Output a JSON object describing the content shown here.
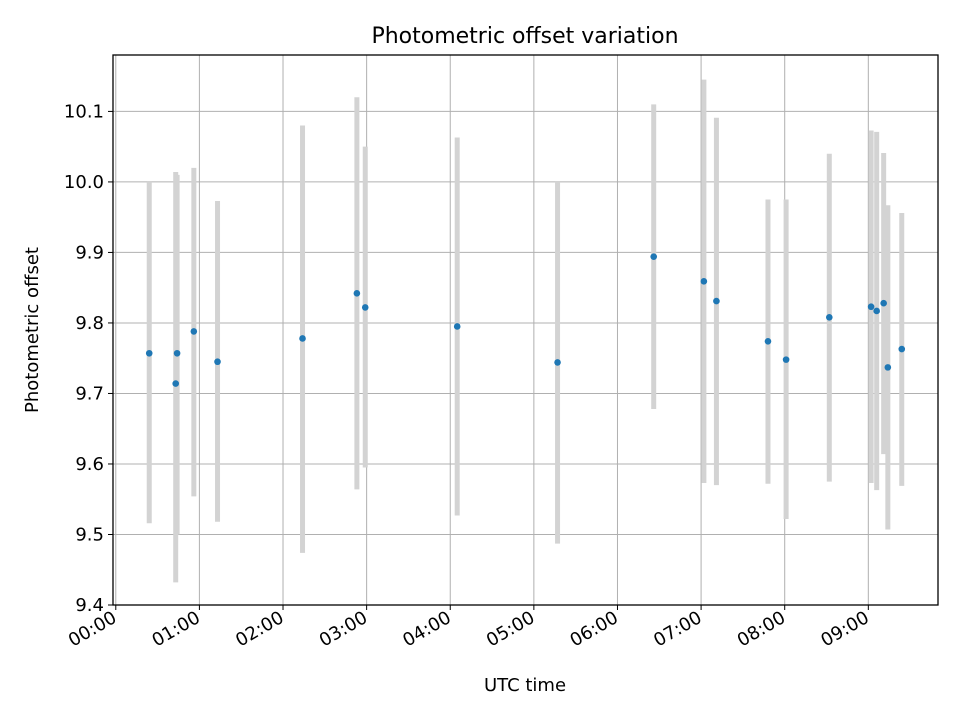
{
  "chart_data": {
    "type": "scatter",
    "title": "Photometric offset variation",
    "xlabel": "UTC time",
    "ylabel": "Photometric offset",
    "x_tick_labels": [
      "00:00",
      "01:00",
      "02:00",
      "03:00",
      "04:00",
      "05:00",
      "06:00",
      "07:00",
      "08:00",
      "09:00"
    ],
    "y_tick_labels": [
      "9.4",
      "9.5",
      "9.6",
      "9.7",
      "9.8",
      "9.9",
      "10.0",
      "10.1"
    ],
    "x_ticks_hours": [
      0,
      1,
      2,
      3,
      4,
      5,
      6,
      7,
      8,
      9
    ],
    "y_ticks": [
      9.4,
      9.5,
      9.6,
      9.7,
      9.8,
      9.9,
      10.0,
      10.1
    ],
    "xlim": [
      "23:58",
      "09:50"
    ],
    "ylim": [
      9.4,
      10.18
    ],
    "grid": true,
    "point_color": "#1f77b4",
    "errorbar_color": "#d3d3d3",
    "points": [
      {
        "x": "00:24",
        "y": 9.757,
        "low": 9.516,
        "high": 10.0
      },
      {
        "x": "00:43",
        "y": 9.714,
        "low": 9.432,
        "high": 10.014
      },
      {
        "x": "00:44",
        "y": 9.757,
        "low": 9.5,
        "high": 10.01
      },
      {
        "x": "00:56",
        "y": 9.788,
        "low": 9.554,
        "high": 10.02
      },
      {
        "x": "01:13",
        "y": 9.745,
        "low": 9.518,
        "high": 9.973
      },
      {
        "x": "02:14",
        "y": 9.778,
        "low": 9.474,
        "high": 10.08
      },
      {
        "x": "02:53",
        "y": 9.842,
        "low": 9.564,
        "high": 10.12
      },
      {
        "x": "02:59",
        "y": 9.822,
        "low": 9.595,
        "high": 10.05
      },
      {
        "x": "04:05",
        "y": 9.795,
        "low": 9.527,
        "high": 10.063
      },
      {
        "x": "05:17",
        "y": 9.744,
        "low": 9.487,
        "high": 10.0
      },
      {
        "x": "06:26",
        "y": 9.894,
        "low": 9.678,
        "high": 10.11
      },
      {
        "x": "07:02",
        "y": 9.859,
        "low": 9.573,
        "high": 10.145
      },
      {
        "x": "07:11",
        "y": 9.831,
        "low": 9.57,
        "high": 10.091
      },
      {
        "x": "07:48",
        "y": 9.774,
        "low": 9.572,
        "high": 9.975
      },
      {
        "x": "08:01",
        "y": 9.748,
        "low": 9.522,
        "high": 9.975
      },
      {
        "x": "08:32",
        "y": 9.808,
        "low": 9.575,
        "high": 10.04
      },
      {
        "x": "09:02",
        "y": 9.823,
        "low": 9.573,
        "high": 10.073
      },
      {
        "x": "09:06",
        "y": 9.817,
        "low": 9.563,
        "high": 10.071
      },
      {
        "x": "09:11",
        "y": 9.828,
        "low": 9.614,
        "high": 10.041
      },
      {
        "x": "09:14",
        "y": 9.737,
        "low": 9.507,
        "high": 9.967
      },
      {
        "x": "09:24",
        "y": 9.763,
        "low": 9.569,
        "high": 9.956
      }
    ]
  }
}
